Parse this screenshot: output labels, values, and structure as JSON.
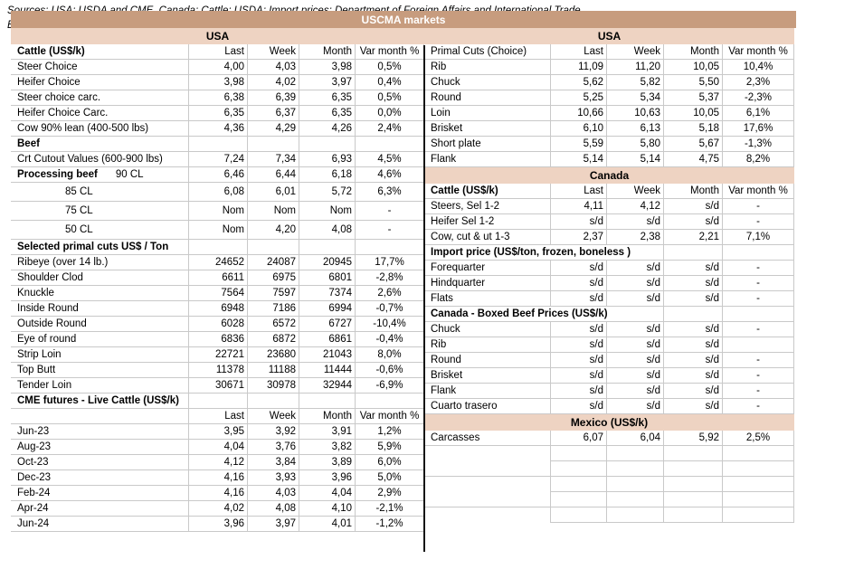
{
  "title": "USCMA markets",
  "colors": {
    "title_bg": "#c79c7e",
    "band_bg": "#eed3c2",
    "divider": "#141414",
    "grid_border": "#c9c9c9"
  },
  "columns": [
    "Last",
    "Week",
    "Month",
    "Var month %"
  ],
  "left_table": {
    "rows": [
      {
        "t": "band",
        "label": "USA"
      },
      {
        "t": "header",
        "label": "Cattle (US$/k)",
        "bold": true,
        "v": [
          "Last",
          "Week",
          "Month",
          "Var month %"
        ]
      },
      {
        "t": "data",
        "label": "Steer Choice",
        "v": [
          "4,00",
          "4,03",
          "3,98",
          "0,5%"
        ]
      },
      {
        "t": "data",
        "label": "Heifer Choice",
        "v": [
          "3,98",
          "4,02",
          "3,97",
          "0,4%"
        ]
      },
      {
        "t": "data",
        "label": "Steer choice carc.",
        "v": [
          "6,38",
          "6,39",
          "6,35",
          "0,5%"
        ]
      },
      {
        "t": "data",
        "label": "Heifer Choice Carc.",
        "v": [
          "6,35",
          "6,37",
          "6,35",
          "0,0%"
        ]
      },
      {
        "t": "data",
        "label": "Cow 90% lean (400-500 lbs)",
        "v": [
          "4,36",
          "4,29",
          "4,26",
          "2,4%"
        ]
      },
      {
        "t": "section",
        "label": "Beef",
        "bold": true,
        "v": [
          "",
          "",
          "",
          ""
        ]
      },
      {
        "t": "data",
        "label": "Crt Cutout Values (600-900 lbs)",
        "v": [
          "7,24",
          "7,34",
          "6,93",
          "4,5%"
        ]
      },
      {
        "t": "data",
        "label": "Processing beef",
        "label2": "90 CL",
        "bold": true,
        "v": [
          "6,46",
          "6,44",
          "6,18",
          "4,6%"
        ]
      },
      {
        "t": "data",
        "label": "",
        "label2": "85 CL",
        "tall": true,
        "v": [
          "6,08",
          "6,01",
          "5,72",
          "6,3%"
        ]
      },
      {
        "t": "data",
        "label": "",
        "label2": "75 CL",
        "tall": true,
        "v": [
          "Nom",
          "Nom",
          "Nom",
          "-"
        ]
      },
      {
        "t": "data",
        "label": "",
        "label2": "50 CL",
        "tall": true,
        "v": [
          "Nom",
          "4,20",
          "4,08",
          "-"
        ]
      },
      {
        "t": "section",
        "label": "Selected primal cuts US$ / Ton",
        "bold": true,
        "v": [
          "",
          "",
          "",
          ""
        ]
      },
      {
        "t": "data",
        "label": "Ribeye (over 14 lb.)",
        "v": [
          "24652",
          "24087",
          "20945",
          "17,7%"
        ]
      },
      {
        "t": "data",
        "label": "Shoulder Clod",
        "v": [
          "6611",
          "6975",
          "6801",
          "-2,8%"
        ]
      },
      {
        "t": "data",
        "label": "Knuckle",
        "v": [
          "7564",
          "7597",
          "7374",
          "2,6%"
        ]
      },
      {
        "t": "data",
        "label": "Inside Round",
        "v": [
          "6948",
          "7186",
          "6994",
          "-0,7%"
        ]
      },
      {
        "t": "data",
        "label": "Outside Round",
        "v": [
          "6028",
          "6572",
          "6727",
          "-10,4%"
        ]
      },
      {
        "t": "data",
        "label": "Eye of round",
        "v": [
          "6836",
          "6872",
          "6861",
          "-0,4%"
        ]
      },
      {
        "t": "data",
        "label": "Strip Loin",
        "v": [
          "22721",
          "23680",
          "21043",
          "8,0%"
        ]
      },
      {
        "t": "data",
        "label": "Top Butt",
        "v": [
          "11378",
          "11188",
          "11444",
          "-0,6%"
        ]
      },
      {
        "t": "data",
        "label": "Tender Loin",
        "v": [
          "30671",
          "30978",
          "32944",
          "-6,9%"
        ]
      },
      {
        "t": "section",
        "label": "CME futures - Live Cattle (US$/k)",
        "bold": true,
        "v": [
          "",
          "",
          "",
          ""
        ]
      },
      {
        "t": "header",
        "label": "",
        "v": [
          "Last",
          "Week",
          "Month",
          "Var month %"
        ]
      },
      {
        "t": "data",
        "label": "Jun-23",
        "v": [
          "3,95",
          "3,92",
          "3,91",
          "1,2%"
        ]
      },
      {
        "t": "data",
        "label": "Aug-23",
        "v": [
          "4,04",
          "3,76",
          "3,82",
          "5,9%"
        ]
      },
      {
        "t": "data",
        "label": "Oct-23",
        "v": [
          "4,12",
          "3,84",
          "3,89",
          "6,0%"
        ]
      },
      {
        "t": "data",
        "label": "Dec-23",
        "v": [
          "4,16",
          "3,93",
          "3,96",
          "5,0%"
        ]
      },
      {
        "t": "data",
        "label": "Feb-24",
        "v": [
          "4,16",
          "4,03",
          "4,04",
          "2,9%"
        ]
      },
      {
        "t": "data",
        "label": "Apr-24",
        "v": [
          "4,02",
          "4,08",
          "4,10",
          "-2,1%"
        ]
      },
      {
        "t": "data",
        "label": "Jun-24",
        "v": [
          "3,96",
          "3,97",
          "4,01",
          "-1,2%"
        ]
      }
    ]
  },
  "right_table": {
    "rows": [
      {
        "t": "band",
        "label": "USA"
      },
      {
        "t": "header",
        "label": "Primal Cuts (Choice)",
        "v": [
          "Last",
          "Week",
          "Month",
          "Var month %"
        ]
      },
      {
        "t": "data",
        "label": "Rib",
        "v": [
          "11,09",
          "11,20",
          "10,05",
          "10,4%"
        ]
      },
      {
        "t": "data",
        "label": "Chuck",
        "v": [
          "5,62",
          "5,82",
          "5,50",
          "2,3%"
        ]
      },
      {
        "t": "data",
        "label": "Round",
        "v": [
          "5,25",
          "5,34",
          "5,37",
          "-2,3%"
        ]
      },
      {
        "t": "data",
        "label": "Loin",
        "v": [
          "10,66",
          "10,63",
          "10,05",
          "6,1%"
        ]
      },
      {
        "t": "data",
        "label": "Brisket",
        "v": [
          "6,10",
          "6,13",
          "5,18",
          "17,6%"
        ]
      },
      {
        "t": "data",
        "label": "Short plate",
        "v": [
          "5,59",
          "5,80",
          "5,67",
          "-1,3%"
        ]
      },
      {
        "t": "data",
        "label": "Flank",
        "v": [
          "5,14",
          "5,14",
          "4,75",
          "8,2%"
        ]
      },
      {
        "t": "band",
        "label": "Canada"
      },
      {
        "t": "header",
        "label": "Cattle (US$/k)",
        "bold": true,
        "v": [
          "Last",
          "Week",
          "Month",
          "Var month %"
        ]
      },
      {
        "t": "data",
        "label": "Steers, Sel 1-2",
        "v": [
          "4,11",
          "4,12",
          "s/d",
          "-"
        ]
      },
      {
        "t": "data",
        "label": "Heifer Sel 1-2",
        "v": [
          "s/d",
          "s/d",
          "s/d",
          "-"
        ]
      },
      {
        "t": "data",
        "label": "Cow, cut & ut 1-3",
        "v": [
          "2,37",
          "2,38",
          "2,21",
          "7,1%"
        ]
      },
      {
        "t": "section",
        "label": "Import price (US$/ton, frozen, boneless )",
        "bold": true,
        "v": [
          "",
          "",
          "",
          ""
        ]
      },
      {
        "t": "data",
        "label": "Forequarter",
        "v": [
          "s/d",
          "s/d",
          "s/d",
          "-"
        ]
      },
      {
        "t": "data",
        "label": "Hindquarter",
        "v": [
          "s/d",
          "s/d",
          "s/d",
          "-"
        ]
      },
      {
        "t": "data",
        "label": "Flats",
        "v": [
          "s/d",
          "s/d",
          "s/d",
          "-"
        ]
      },
      {
        "t": "section",
        "label": "Canada - Boxed Beef Prices (US$/k)",
        "bold": true,
        "v": [
          "",
          "",
          "",
          ""
        ]
      },
      {
        "t": "data",
        "label": "Chuck",
        "v": [
          "s/d",
          "s/d",
          "s/d",
          "-"
        ]
      },
      {
        "t": "data",
        "label": "Rib",
        "v": [
          "s/d",
          "s/d",
          "s/d",
          ""
        ]
      },
      {
        "t": "data",
        "label": "Round",
        "v": [
          "s/d",
          "s/d",
          "s/d",
          "-"
        ]
      },
      {
        "t": "data",
        "label": "Brisket",
        "v": [
          "s/d",
          "s/d",
          "s/d",
          "-"
        ]
      },
      {
        "t": "data",
        "label": "Flank",
        "v": [
          "s/d",
          "s/d",
          "s/d",
          "-"
        ]
      },
      {
        "t": "data",
        "label": "Cuarto trasero",
        "v": [
          "s/d",
          "s/d",
          "s/d",
          "-"
        ]
      },
      {
        "t": "band",
        "label": "Mexico (US$/k)"
      },
      {
        "t": "data",
        "label": "Carcasses",
        "v": [
          "6,07",
          "6,04",
          "5,92",
          "2,5%"
        ]
      },
      {
        "t": "empty",
        "label": "",
        "v": [
          "",
          "",
          "",
          ""
        ]
      },
      {
        "t": "empty",
        "label": "",
        "lb": true,
        "v": [
          "",
          "",
          "",
          ""
        ]
      },
      {
        "t": "empty",
        "label": "",
        "v": [
          "",
          "",
          "",
          ""
        ]
      },
      {
        "t": "empty",
        "label": "",
        "lb": true,
        "v": [
          "",
          "",
          "",
          ""
        ]
      },
      {
        "t": "empty",
        "label": "",
        "v": [
          "",
          "",
          "",
          ""
        ]
      }
    ]
  },
  "sources": {
    "line1": "Sources: USA: USDA and CME. Canada: Cattle: USDA; Import prices: Department of Foreign Affairs and International Trade",
    "line2": "Boxed Beef Prices: Agriculture and Agri-Food Canada. Mexico: Urner Barry"
  }
}
